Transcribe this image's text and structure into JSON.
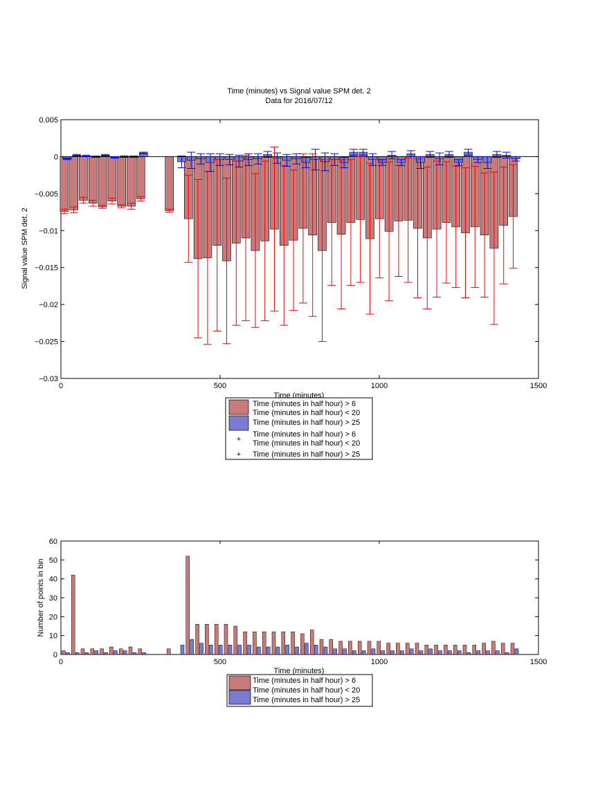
{
  "chart_data": [
    {
      "type": "bar",
      "title": "Time (minutes) vs Signal value SPM det. 2",
      "subtitle": "Data for 2016/07/12",
      "xlabel": "Time (minutes)",
      "ylabel": "Signal value SPM det. 2",
      "xlim": [
        0,
        1500
      ],
      "ylim": [
        -0.03,
        0.005
      ],
      "xticks": [
        "0",
        "500",
        "1000",
        "1500"
      ],
      "yticks": [
        "0.005",
        "0",
        "−0.005",
        "−0.01",
        "−0.015",
        "−0.02",
        "−0.025",
        "−0.03"
      ],
      "grid": false,
      "legend_position": "below-center",
      "legend": [
        "Time (minutes in half hour) > 6",
        "Time (minutes in half hour) < 20",
        "Time (minutes in half hour) > 25",
        "Time (minutes in half hour) > 6",
        "Time (minutes in half hour) < 20",
        "Time (minutes in half hour) > 25"
      ],
      "colors": {
        "red_bar": "#c97b7b",
        "blue_bar": "#7b7bd2",
        "red_err": "#ee0000",
        "blue_err": "#0000ee"
      },
      "x": [
        15,
        45,
        75,
        105,
        135,
        165,
        195,
        225,
        255,
        345,
        375,
        405,
        435,
        465,
        495,
        525,
        555,
        585,
        615,
        645,
        675,
        705,
        735,
        765,
        795,
        825,
        855,
        885,
        915,
        945,
        975,
        1005,
        1035,
        1065,
        1095,
        1125,
        1155,
        1185,
        1215,
        1245,
        1275,
        1305,
        1335,
        1365,
        1395,
        1425
      ],
      "series": [
        {
          "name": "Time (minutes in half hour) > 6",
          "values": [
            -0.0074,
            -0.0072,
            -0.0059,
            -0.0063,
            -0.0068,
            -0.006,
            -0.0067,
            -0.0067,
            -0.0057,
            -0.0073,
            null,
            -0.0084,
            -0.0138,
            -0.0137,
            -0.012,
            -0.0141,
            -0.0117,
            -0.011,
            -0.0127,
            -0.0114,
            -0.0098,
            -0.012,
            -0.0113,
            -0.0097,
            -0.0106,
            -0.0127,
            -0.0089,
            -0.0105,
            -0.0089,
            -0.0085,
            -0.0111,
            -0.0084,
            -0.0101,
            -0.0087,
            -0.0086,
            -0.0097,
            -0.011,
            -0.0098,
            -0.0089,
            -0.0095,
            -0.0103,
            -0.0095,
            -0.0106,
            -0.0124,
            -0.0093,
            -0.0081
          ],
          "error": [
            0.0003,
            0.0004,
            0.0004,
            0.0004,
            0.0002,
            0.0004,
            0.0002,
            0.0004,
            0.0003,
            0.0002,
            null,
            0.0059,
            0.0107,
            0.0117,
            0.0116,
            0.0112,
            0.0111,
            0.0112,
            0.0104,
            0.0108,
            0.0111,
            0.0108,
            0.0095,
            0.0101,
            0.011,
            0.0123,
            0.0085,
            0.0101,
            0.0085,
            0.0085,
            0.0102,
            0.008,
            0.0094,
            0.0075,
            0.0084,
            0.0094,
            0.0096,
            0.0092,
            0.0082,
            0.0082,
            0.0088,
            0.0082,
            0.0084,
            0.0103,
            0.0079,
            0.007
          ]
        },
        {
          "name": "Time (minutes in half hour) > 25",
          "values": [
            -0.0003,
            0.0002,
            0.0001,
            0.0,
            0.0002,
            -0.0001,
            0.0,
            0.0,
            0.0005,
            null,
            -0.0007,
            -0.0005,
            -0.0003,
            -0.0008,
            -0.0004,
            -0.0004,
            -0.0006,
            -0.0004,
            -0.0003,
            0.0003,
            -0.0002,
            -0.0005,
            -0.0003,
            -0.0008,
            -0.0004,
            -0.0007,
            -0.0004,
            -0.0008,
            0.0006,
            0.0006,
            -0.0004,
            -0.0008,
            0.0002,
            -0.0008,
            0.0004,
            -0.0008,
            0.0003,
            -0.0003,
            0.0003,
            -0.0008,
            0.0006,
            -0.0004,
            -0.0008,
            0.0003,
            0.0002,
            -0.0003
          ],
          "error": [
            0.0001,
            0.0001,
            0.0001,
            0.0001,
            0.0001,
            0.0001,
            0.0001,
            0.0001,
            0.0001,
            null,
            0.0008,
            0.0011,
            0.0007,
            0.0012,
            0.0008,
            0.0007,
            0.0008,
            0.0008,
            0.0007,
            0.0004,
            0.0007,
            0.0008,
            0.0007,
            0.0007,
            0.0014,
            0.0012,
            0.0008,
            0.0007,
            0.0004,
            0.0004,
            0.0008,
            0.0004,
            0.0005,
            0.0004,
            0.0004,
            0.0008,
            0.0004,
            0.0008,
            0.0004,
            0.0004,
            0.0004,
            0.0004,
            0.0008,
            0.0004,
            0.0004,
            0.0003
          ]
        }
      ]
    },
    {
      "type": "bar",
      "xlabel": "Time (minutes)",
      "ylabel": "Number of points in bin",
      "xlim": [
        0,
        1500
      ],
      "ylim": [
        0,
        60
      ],
      "xticks": [
        "0",
        "500",
        "1000",
        "1500"
      ],
      "yticks": [
        "0",
        "10",
        "20",
        "30",
        "40",
        "50",
        "60"
      ],
      "grid": false,
      "legend_position": "below-center",
      "legend": [
        "Time (minutes in half hour) > 6",
        "Time (minutes in half hour) < 20",
        "Time (minutes in half hour) > 25"
      ],
      "x": [
        15,
        45,
        75,
        105,
        135,
        165,
        195,
        225,
        255,
        345,
        375,
        405,
        435,
        465,
        495,
        525,
        555,
        585,
        615,
        645,
        675,
        705,
        735,
        765,
        795,
        825,
        855,
        885,
        915,
        945,
        975,
        1005,
        1035,
        1065,
        1095,
        1125,
        1155,
        1185,
        1215,
        1245,
        1275,
        1305,
        1335,
        1365,
        1395,
        1425
      ],
      "series": [
        {
          "name": "Time (minutes in half hour) > 6",
          "values": [
            2,
            42,
            3,
            3,
            3,
            4,
            3,
            4,
            3,
            3,
            0,
            52,
            16,
            16,
            16,
            16,
            15,
            12,
            12,
            12,
            12,
            12,
            12,
            11,
            13,
            8,
            8,
            7,
            7,
            7,
            7,
            7,
            6,
            6,
            6,
            6,
            5,
            5,
            5,
            5,
            5,
            5,
            6,
            7,
            6,
            6
          ]
        },
        {
          "name": "Time (minutes in half hour) > 25",
          "values": [
            1,
            1,
            1,
            2,
            1,
            2,
            2,
            1,
            1,
            0,
            5,
            8,
            6,
            5,
            5,
            5,
            5,
            5,
            4,
            4,
            4,
            5,
            4,
            6,
            5,
            4,
            3,
            3,
            2,
            2,
            3,
            2,
            2,
            2,
            3,
            2,
            3,
            2,
            2,
            2,
            1,
            2,
            2,
            2,
            1,
            3
          ]
        }
      ]
    }
  ]
}
